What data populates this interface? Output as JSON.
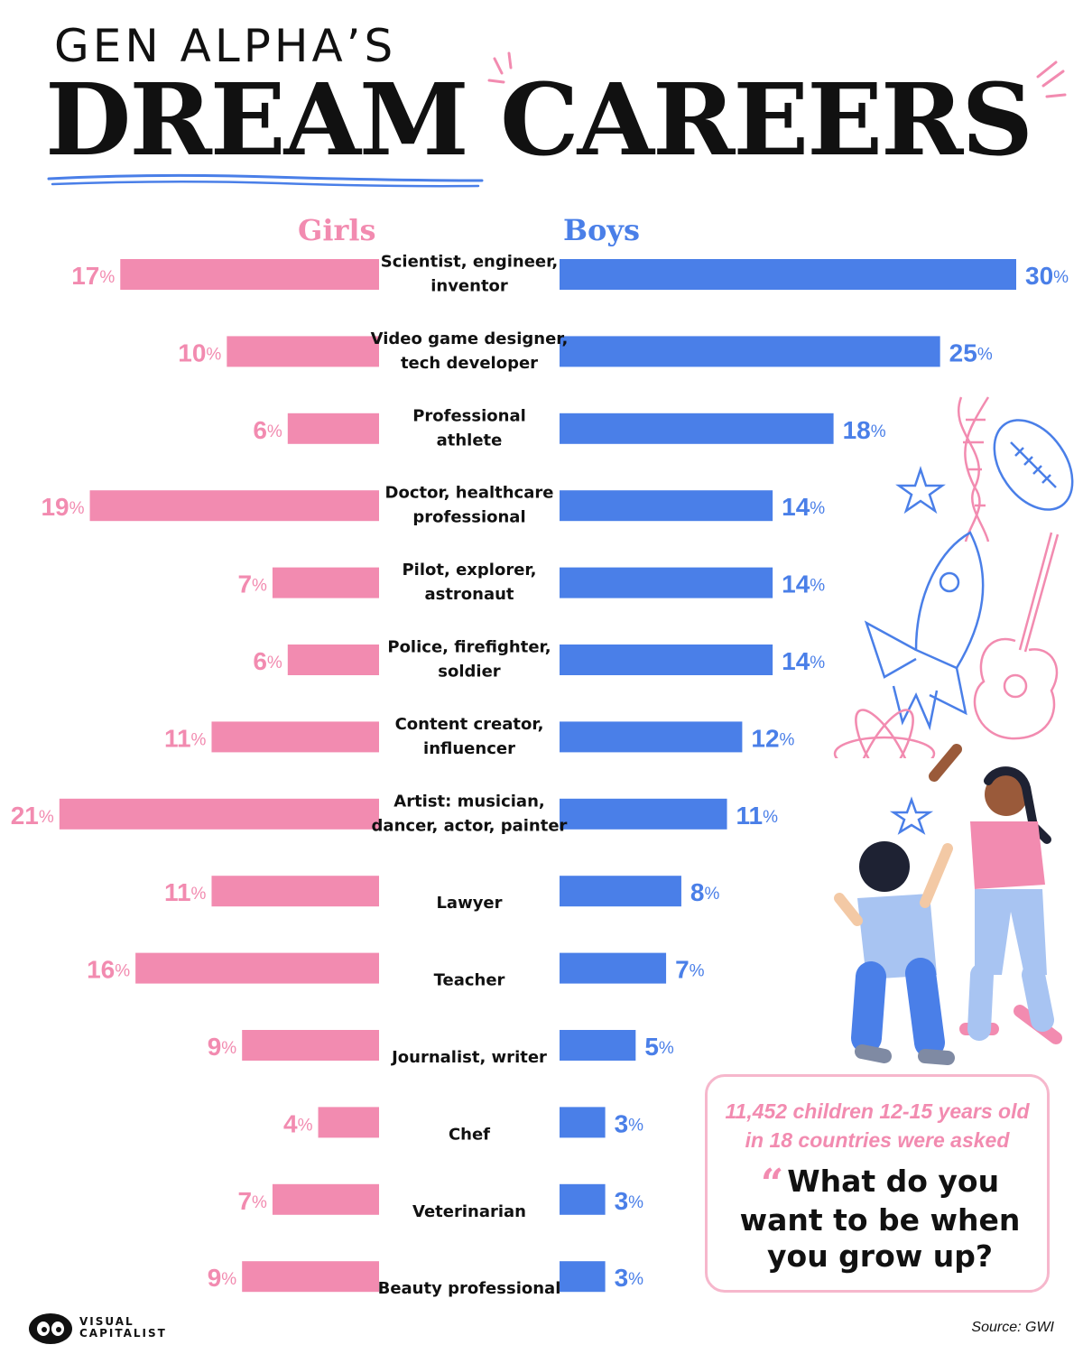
{
  "title": {
    "top": "GEN ALPHA’S",
    "main": "DREAM CAREERS"
  },
  "colors": {
    "girls": "#f28bb0",
    "boys": "#4a7fe8",
    "label": "#111111"
  },
  "chart_data": {
    "type": "bar",
    "orientation": "horizontal",
    "layout": "butterfly",
    "categories": [
      [
        "Scientist, engineer,",
        "inventor"
      ],
      [
        "Video game designer,",
        "tech developer"
      ],
      [
        "Professional",
        "athlete"
      ],
      [
        "Doctor, healthcare",
        "professional"
      ],
      [
        "Pilot, explorer,",
        "astronaut"
      ],
      [
        "Police, firefighter,",
        "soldier"
      ],
      [
        "Content creator,",
        "influencer"
      ],
      [
        "Artist: musician,",
        "dancer, actor, painter"
      ],
      [
        "Lawyer"
      ],
      [
        "Teacher"
      ],
      [
        "Journalist, writer"
      ],
      [
        "Chef"
      ],
      [
        "Veterinarian"
      ],
      [
        "Beauty professional"
      ]
    ],
    "series": [
      {
        "name": "Girls",
        "color": "#f28bb0",
        "values": [
          17,
          10,
          6,
          19,
          7,
          6,
          11,
          21,
          11,
          16,
          9,
          4,
          7,
          9
        ]
      },
      {
        "name": "Boys",
        "color": "#4a7fe8",
        "values": [
          30,
          25,
          18,
          14,
          14,
          14,
          12,
          11,
          8,
          7,
          5,
          3,
          3,
          3
        ]
      }
    ],
    "unit": "%",
    "xlim": [
      0,
      30
    ],
    "grid": false
  },
  "callout": {
    "sub_line1": "11,452 children 12-15 years old",
    "sub_line2": "in 18 countries were asked",
    "quote_mark": "“",
    "question_line1": "What do you",
    "question_line2": "want to be when",
    "question_line3": "you grow up?"
  },
  "logo": {
    "line1": "VISUAL",
    "line2": "CAPITALIST"
  },
  "source": "Source: GWI"
}
